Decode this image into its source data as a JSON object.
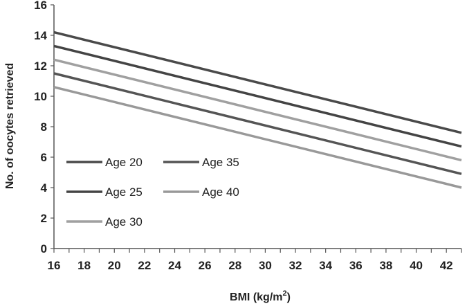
{
  "chart_data": {
    "type": "line",
    "xlabel": "BMI (kg/m",
    "xlabel_sup": "2",
    "xlabel_close": ")",
    "ylabel": "No. of oocytes retrieved",
    "xlim": [
      16,
      43
    ],
    "ylim": [
      0,
      16
    ],
    "xticks": [
      16,
      18,
      20,
      22,
      24,
      26,
      28,
      30,
      32,
      34,
      36,
      38,
      40,
      42
    ],
    "yticks": [
      0,
      2,
      4,
      6,
      8,
      10,
      12,
      14,
      16
    ],
    "grid": false,
    "legend_placement": "lower-left",
    "x": [
      16,
      43
    ],
    "series": [
      {
        "name": "Age 20",
        "values": [
          14.2,
          7.6
        ],
        "color": "#4a4a4a"
      },
      {
        "name": "Age 25",
        "values": [
          13.3,
          6.7
        ],
        "color": "#444444"
      },
      {
        "name": "Age 30",
        "values": [
          12.4,
          5.8
        ],
        "color": "#a0a0a0"
      },
      {
        "name": "Age 35",
        "values": [
          11.5,
          4.9
        ],
        "color": "#555555"
      },
      {
        "name": "Age 40",
        "values": [
          10.6,
          4.0
        ],
        "color": "#999999"
      }
    ]
  }
}
